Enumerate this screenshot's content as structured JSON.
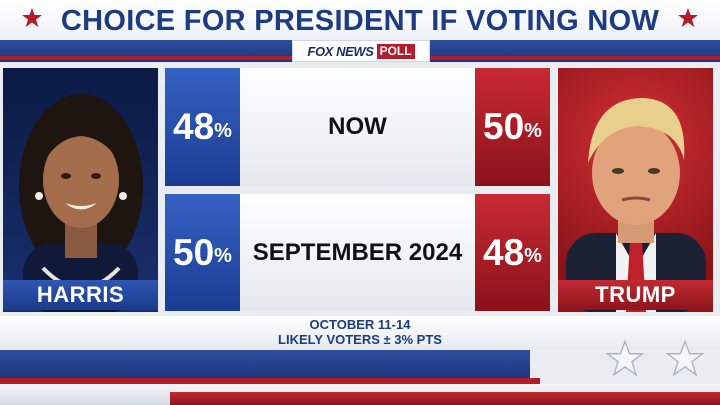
{
  "header": {
    "title": "CHOICE FOR PRESIDENT IF VOTING NOW",
    "brand": "FOX NEWS",
    "poll_tag": "POLL"
  },
  "candidates": {
    "left": {
      "name": "HARRIS",
      "color": "#1d3b8c"
    },
    "right": {
      "name": "TRUMP",
      "color": "#a8161e"
    }
  },
  "chart_data": {
    "type": "table",
    "title": "CHOICE FOR PRESIDENT IF VOTING NOW",
    "columns": [
      "HARRIS",
      "",
      "TRUMP"
    ],
    "rows": [
      {
        "label": "NOW",
        "harris": "48",
        "trump": "50",
        "unit": "%"
      },
      {
        "label": "SEPTEMBER 2024",
        "harris": "50",
        "trump": "48",
        "unit": "%"
      }
    ],
    "series": [
      {
        "name": "HARRIS",
        "values": [
          48,
          50
        ]
      },
      {
        "name": "TRUMP",
        "values": [
          50,
          48
        ]
      }
    ],
    "categories": [
      "NOW",
      "SEPTEMBER 2024"
    ]
  },
  "footer": {
    "dates": "OCTOBER 11-14",
    "sample": "LIKELY VOTERS ± 3% PTS"
  },
  "icons": [
    "star-icon",
    "harris-portrait",
    "trump-portrait"
  ]
}
